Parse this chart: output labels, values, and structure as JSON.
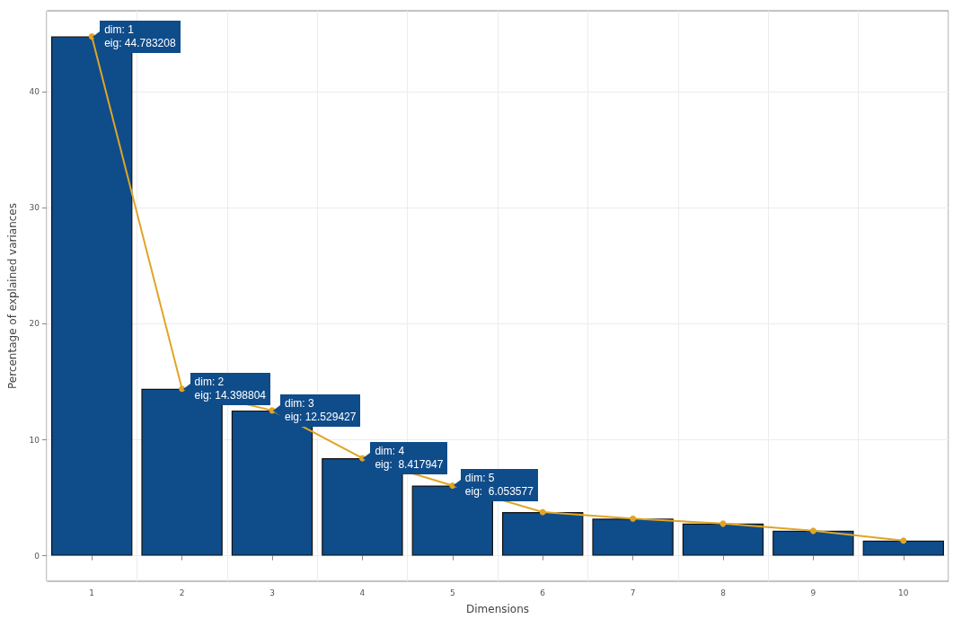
{
  "chart_data": {
    "type": "bar",
    "xlabel": "Dimensions",
    "ylabel": "Percentage of explained variances",
    "categories": [
      "1",
      "2",
      "3",
      "4",
      "5",
      "6",
      "7",
      "8",
      "9",
      "10"
    ],
    "series": [
      {
        "color": "#0f4c8a",
        "values": [
          44.783208,
          14.398804,
          12.529427,
          8.417947,
          6.053577,
          3.77,
          3.2,
          2.77,
          2.15,
          1.3
        ]
      },
      {
        "type": "line",
        "color": "#e0a526",
        "values": [
          44.783208,
          14.398804,
          12.529427,
          8.417947,
          6.053577,
          3.77,
          3.2,
          2.77,
          2.15,
          1.3
        ]
      }
    ],
    "ylim": [
      -2.2,
      47
    ],
    "yticks": [
      0,
      10,
      20,
      30,
      40
    ],
    "grid": true,
    "marker": "circle",
    "line_style": "solid",
    "annotations": [
      {
        "text": "dim: 1\neig: 44.783208",
        "x": "1",
        "y": 44.783208
      },
      {
        "text": "dim: 2\neig: 14.398804",
        "x": "2",
        "y": 14.398804
      },
      {
        "text": "dim: 3\neig: 12.529427",
        "x": "3",
        "y": 12.529427
      },
      {
        "text": "dim: 4\neig:  8.417947",
        "x": "4",
        "y": 8.417947
      },
      {
        "text": "dim: 5\neig:  6.053577",
        "x": "5",
        "y": 6.053577
      }
    ]
  }
}
